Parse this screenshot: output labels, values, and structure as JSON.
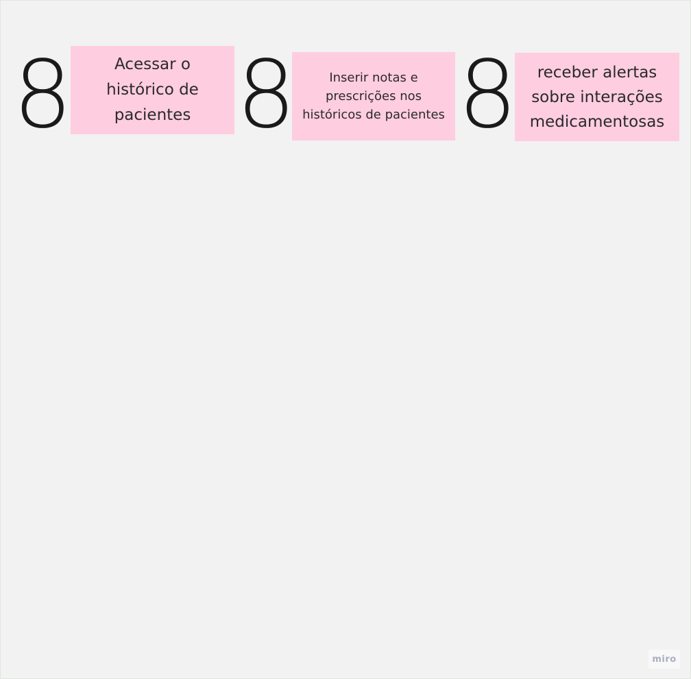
{
  "board": {
    "background_color": "#f1f2f1",
    "sticky_color": "#ffcde0"
  },
  "items": [
    {
      "number": "8",
      "note": "Acessar o\nhistórico de\npacientes"
    },
    {
      "number": "8",
      "note": "Inserir notas e\nprescrições nos\nhistóricos de pacientes"
    },
    {
      "number": "8",
      "note": "receber alertas\nsobre interações\nmedicamentosas"
    }
  ],
  "badge": {
    "label": "miro"
  }
}
